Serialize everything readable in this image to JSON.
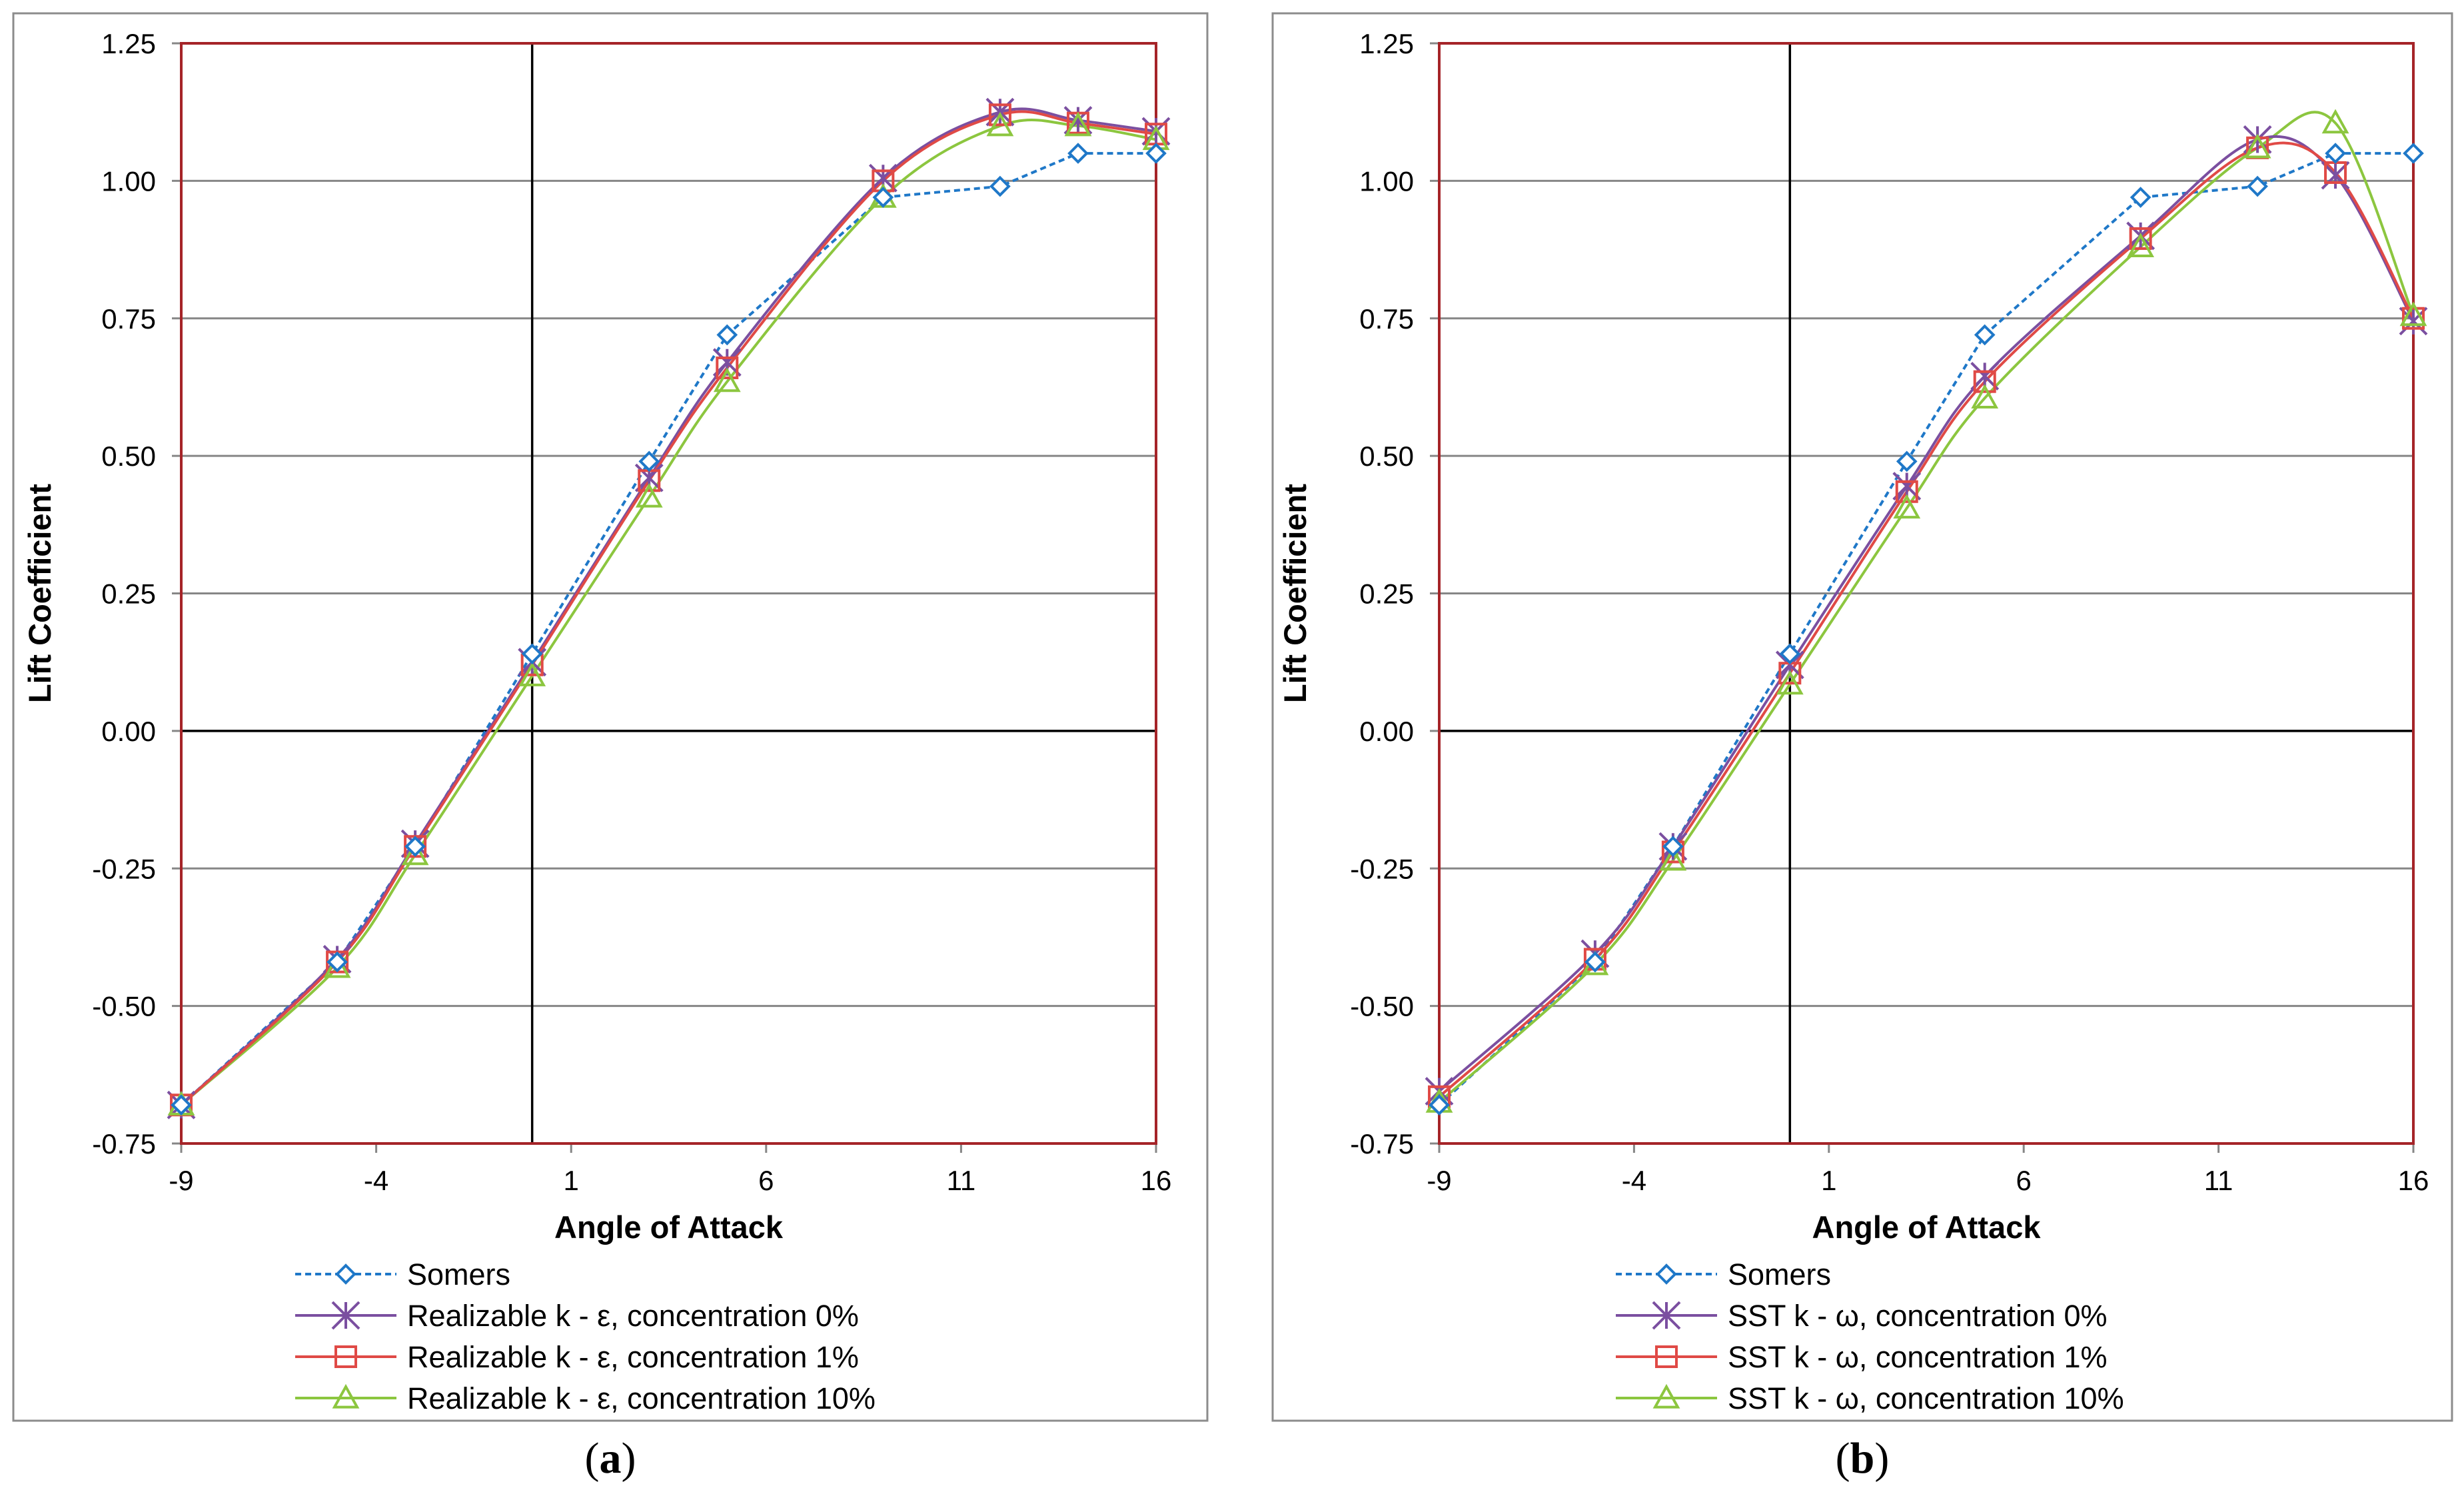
{
  "chart_data": [
    {
      "type": "line",
      "panel_label": "a",
      "xlabel": "Angle of Attack",
      "ylabel": "Lift Coefficient",
      "xlim": [
        -9,
        16
      ],
      "ylim": [
        -0.75,
        1.25
      ],
      "x_ticks": [
        -9,
        -4,
        1,
        6,
        11,
        16
      ],
      "x_tick_labels": [
        "-9",
        "-4",
        "1",
        "6",
        "11",
        "16"
      ],
      "y_ticks": [
        -0.75,
        -0.5,
        -0.25,
        0,
        0.25,
        0.5,
        0.75,
        1,
        1.25
      ],
      "y_tick_labels": [
        "-0.75",
        "-0.50",
        "-0.25",
        "0.00",
        "0.25",
        "0.50",
        "0.75",
        "1.00",
        "1.25"
      ],
      "grid": "horizontal",
      "legend_position": "below",
      "series": [
        {
          "name": "Somers",
          "color": "#1F78C8",
          "marker": "diamond",
          "line_style": "dashed",
          "smooth": false,
          "x": [
            -9,
            -5,
            -3,
            0,
            3,
            5,
            9,
            12,
            14,
            16
          ],
          "y": [
            -0.68,
            -0.42,
            -0.21,
            0.14,
            0.49,
            0.72,
            0.97,
            0.99,
            1.05,
            1.05
          ]
        },
        {
          "name": "Realizable k - ε, concentration 0%",
          "color": "#7B4FA0",
          "marker": "star",
          "line_style": "solid",
          "smooth": true,
          "x": [
            -9,
            -5,
            -3,
            0,
            3,
            5,
            9,
            12,
            14,
            16
          ],
          "y": [
            -0.68,
            -0.415,
            -0.205,
            0.125,
            0.46,
            0.67,
            1.005,
            1.125,
            1.11,
            1.09
          ]
        },
        {
          "name": "Realizable k - ε, concentration 1%",
          "color": "#E04A46",
          "marker": "square",
          "line_style": "solid",
          "smooth": true,
          "x": [
            -9,
            -5,
            -3,
            0,
            3,
            5,
            9,
            12,
            14,
            16
          ],
          "y": [
            -0.68,
            -0.42,
            -0.21,
            0.12,
            0.455,
            0.66,
            1.0,
            1.12,
            1.105,
            1.085
          ]
        },
        {
          "name": "Realizable k - ε, concentration 10%",
          "color": "#8CC63F",
          "marker": "triangle",
          "line_style": "solid",
          "smooth": true,
          "x": [
            -9,
            -5,
            -3,
            0,
            3,
            5,
            9,
            12,
            14,
            16
          ],
          "y": [
            -0.68,
            -0.43,
            -0.225,
            0.1,
            0.425,
            0.635,
            0.97,
            1.1,
            1.1,
            1.075
          ]
        }
      ]
    },
    {
      "type": "line",
      "panel_label": "b",
      "xlabel": "Angle of Attack",
      "ylabel": "Lift Coefficient",
      "xlim": [
        -9,
        16
      ],
      "ylim": [
        -0.75,
        1.25
      ],
      "x_ticks": [
        -9,
        -4,
        1,
        6,
        11,
        16
      ],
      "x_tick_labels": [
        "-9",
        "-4",
        "1",
        "6",
        "11",
        "16"
      ],
      "y_ticks": [
        -0.75,
        -0.5,
        -0.25,
        0,
        0.25,
        0.5,
        0.75,
        1,
        1.25
      ],
      "y_tick_labels": [
        "-0.75",
        "-0.50",
        "-0.25",
        "0.00",
        "0.25",
        "0.50",
        "0.75",
        "1.00",
        "1.25"
      ],
      "grid": "horizontal",
      "legend_position": "below",
      "series": [
        {
          "name": "Somers",
          "color": "#1F78C8",
          "marker": "diamond",
          "line_style": "dashed",
          "smooth": false,
          "x": [
            -9,
            -5,
            -3,
            0,
            3,
            5,
            9,
            12,
            14,
            16
          ],
          "y": [
            -0.68,
            -0.42,
            -0.21,
            0.14,
            0.49,
            0.72,
            0.97,
            0.99,
            1.05,
            1.05
          ]
        },
        {
          "name": "SST k - ω, concentration 0%",
          "color": "#7B4FA0",
          "marker": "star",
          "line_style": "solid",
          "smooth": true,
          "x": [
            -9,
            -5,
            -3,
            0,
            3,
            5,
            9,
            12,
            14,
            16
          ],
          "y": [
            -0.655,
            -0.405,
            -0.21,
            0.12,
            0.445,
            0.645,
            0.9,
            1.075,
            1.01,
            0.745
          ]
        },
        {
          "name": "SST k - ω, concentration 1%",
          "color": "#E04A46",
          "marker": "square",
          "line_style": "solid",
          "smooth": true,
          "x": [
            -9,
            -5,
            -3,
            0,
            3,
            5,
            9,
            12,
            14,
            16
          ],
          "y": [
            -0.665,
            -0.415,
            -0.22,
            0.105,
            0.435,
            0.635,
            0.895,
            1.06,
            1.015,
            0.75
          ]
        },
        {
          "name": "SST k - ω, concentration 10%",
          "color": "#8CC63F",
          "marker": "triangle",
          "line_style": "solid",
          "smooth": true,
          "x": [
            -9,
            -5,
            -3,
            0,
            3,
            5,
            9,
            12,
            14,
            16
          ],
          "y": [
            -0.675,
            -0.425,
            -0.235,
            0.085,
            0.405,
            0.605,
            0.88,
            1.06,
            1.105,
            0.755
          ]
        }
      ]
    }
  ]
}
